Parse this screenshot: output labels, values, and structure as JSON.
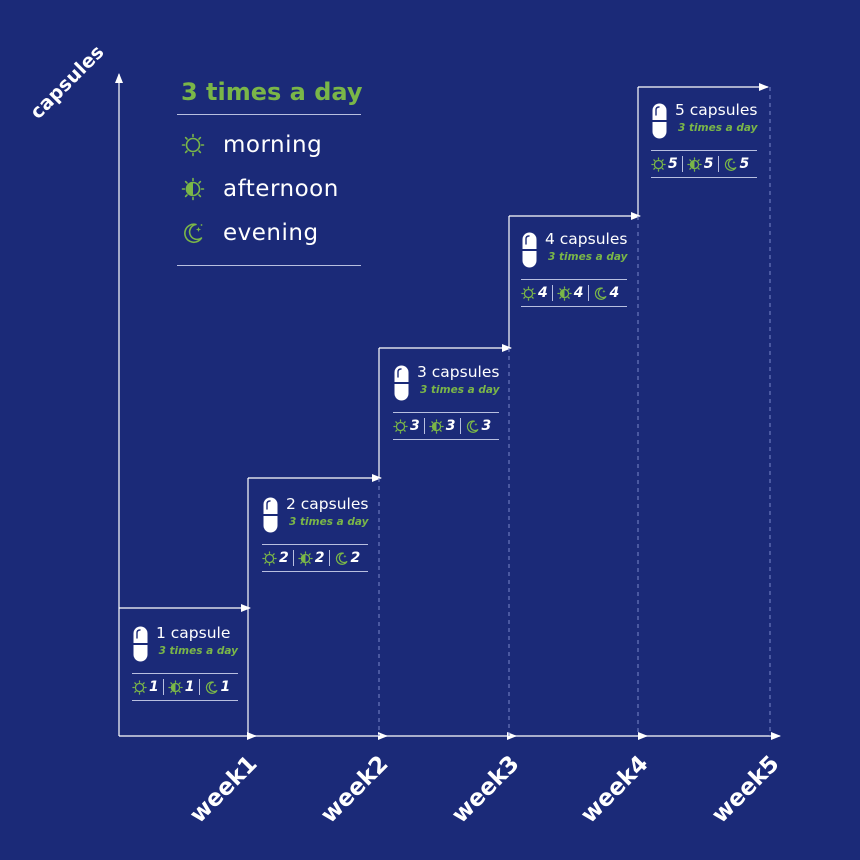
{
  "y_axis_label": "capsules",
  "legend": {
    "title": "3 times a day",
    "items": [
      {
        "icon": "sun-icon",
        "label": "morning"
      },
      {
        "icon": "half-sun-icon",
        "label": "afternoon"
      },
      {
        "icon": "moon-icon",
        "label": "evening"
      }
    ]
  },
  "steps": [
    {
      "week": "week1",
      "capsules_label": "1 capsule",
      "frequency": "3 times a day",
      "morning": "1",
      "afternoon": "1",
      "evening": "1"
    },
    {
      "week": "week2",
      "capsules_label": "2 capsules",
      "frequency": "3 times a day",
      "morning": "2",
      "afternoon": "2",
      "evening": "2"
    },
    {
      "week": "week3",
      "capsules_label": "3 capsules",
      "frequency": "3 times a day",
      "morning": "3",
      "afternoon": "3",
      "evening": "3"
    },
    {
      "week": "week4",
      "capsules_label": "4 capsules",
      "frequency": "3 times a day",
      "morning": "4",
      "afternoon": "4",
      "evening": "4"
    },
    {
      "week": "week5",
      "capsules_label": "5 capsules",
      "frequency": "3 times a day",
      "morning": "5",
      "afternoon": "5",
      "evening": "5"
    }
  ],
  "colors": {
    "background": "#1b2a78",
    "accent": "#7ab648",
    "line": "#ffffff"
  }
}
